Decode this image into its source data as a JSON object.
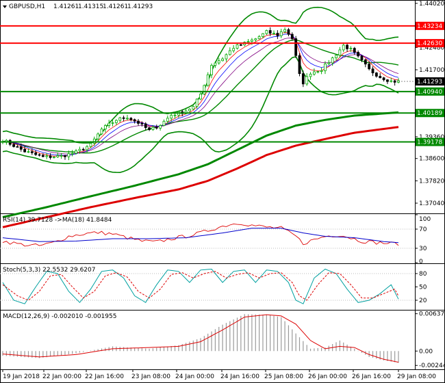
{
  "window": {
    "symbol_title": "GBPUSD,H1",
    "ohlc": [
      "1.41261",
      "1.41315",
      "1.41261",
      "1.41293"
    ],
    "collapse_icon": "triangle-down-icon"
  },
  "colors": {
    "bull_candle": "#00aa00",
    "bear_candle": "#000000",
    "bollinger": "#008800",
    "ma_fast": "#ff0000",
    "ma_mid": "#0000ff",
    "ma_slow": "#800080",
    "ma200_green": "#008800",
    "ma_red": "#dd0000",
    "rsi": "#dd0000",
    "rsi_ma": "#0000cc",
    "stoch_main": "#00a0a0",
    "stoch_signal": "#dd0000",
    "macd_hist": "#999999",
    "macd_signal": "#dd0000",
    "level_red": "#ff0000",
    "level_green": "#008800",
    "current_price_bg": "#000000"
  },
  "chart_data": [
    {
      "type": "candlestick",
      "name": "GBPUSD,H1",
      "y_axis_ticks": [
        "1.44020",
        "1.42480",
        "1.41700",
        "1.39360",
        "1.38600",
        "1.37820",
        "1.37040"
      ],
      "ylim": [
        1.3673,
        1.4409
      ],
      "x_axis_ticks": [
        "19 Jan 2018",
        "22 Jan 00:00",
        "22 Jan 16:00",
        "23 Jan 08:00",
        "24 Jan 00:00",
        "24 Jan 16:00",
        "25 Jan 08:00",
        "26 Jan 00:00",
        "26 Jan 16:00",
        "29 Jan 08:00"
      ],
      "horizontal_levels": [
        {
          "value": 1.43234,
          "label": "1.43234",
          "color": "red"
        },
        {
          "value": 1.4263,
          "label": "1.42630",
          "color": "red"
        },
        {
          "value": 1.4094,
          "label": "1.40940",
          "color": "green"
        },
        {
          "value": 1.40189,
          "label": "1.40189",
          "color": "green"
        },
        {
          "value": 1.39178,
          "label": "1.39178",
          "color": "green"
        }
      ],
      "current_price": {
        "value": 1.41293,
        "label": "1.41293"
      },
      "anchors": [
        [
          0,
          1.3925
        ],
        [
          6,
          1.3885
        ],
        [
          11,
          1.3865
        ],
        [
          16,
          1.3868
        ],
        [
          20,
          1.3882
        ],
        [
          24,
          1.3908
        ],
        [
          27,
          1.3962
        ],
        [
          31,
          1.3995
        ],
        [
          34,
          1.4005
        ],
        [
          37,
          1.3985
        ],
        [
          40,
          1.3958
        ],
        [
          43,
          1.3978
        ],
        [
          46,
          1.4012
        ],
        [
          49,
          1.4022
        ],
        [
          52,
          1.404
        ],
        [
          54,
          1.4085
        ],
        [
          57,
          1.4188
        ],
        [
          60,
          1.421
        ],
        [
          63,
          1.4248
        ],
        [
          66,
          1.4262
        ],
        [
          69,
          1.4278
        ],
        [
          72,
          1.4302
        ],
        [
          75,
          1.4292
        ],
        [
          77,
          1.4312
        ],
        [
          79,
          1.428
        ],
        [
          81,
          1.4152
        ],
        [
          82,
          1.4125
        ],
        [
          84,
          1.416
        ],
        [
          87,
          1.4172
        ],
        [
          90,
          1.421
        ],
        [
          93,
          1.4255
        ],
        [
          95,
          1.424
        ],
        [
          98,
          1.42
        ],
        [
          100,
          1.417
        ],
        [
          103,
          1.4145
        ],
        [
          106,
          1.413
        ],
        [
          108,
          1.4129
        ]
      ],
      "moving_averages": [
        {
          "color": "green",
          "anchors": [
            [
              0,
              1.3655
            ],
            [
              12,
              1.369
            ],
            [
              24,
              1.3728
            ],
            [
              36,
              1.3765
            ],
            [
              48,
              1.3805
            ],
            [
              56,
              1.384
            ],
            [
              64,
              1.389
            ],
            [
              72,
              1.394
            ],
            [
              80,
              1.3975
            ],
            [
              88,
              1.3995
            ],
            [
              96,
              1.401
            ],
            [
              108,
              1.4021
            ]
          ]
        },
        {
          "color": "red",
          "anchors": [
            [
              0,
              1.362
            ],
            [
              12,
              1.3655
            ],
            [
              24,
              1.369
            ],
            [
              36,
              1.3722
            ],
            [
              48,
              1.3752
            ],
            [
              56,
              1.3782
            ],
            [
              64,
              1.3825
            ],
            [
              72,
              1.3872
            ],
            [
              80,
              1.3905
            ],
            [
              88,
              1.3928
            ],
            [
              96,
              1.395
            ],
            [
              108,
              1.397
            ]
          ]
        }
      ]
    },
    {
      "type": "line",
      "name": "RSI(14)",
      "header": "RSI(14) 39.7128  ->MA(18) 41.8484",
      "y_ticks": [
        "100",
        "70",
        "30",
        "0"
      ],
      "ylim": [
        0,
        100
      ],
      "rsi_anchors": [
        [
          0,
          45
        ],
        [
          5,
          38
        ],
        [
          10,
          35
        ],
        [
          14,
          42
        ],
        [
          18,
          55
        ],
        [
          22,
          60
        ],
        [
          26,
          63
        ],
        [
          30,
          60
        ],
        [
          34,
          52
        ],
        [
          38,
          45
        ],
        [
          42,
          43
        ],
        [
          46,
          50
        ],
        [
          50,
          55
        ],
        [
          54,
          62
        ],
        [
          58,
          72
        ],
        [
          62,
          80
        ],
        [
          65,
          83
        ],
        [
          68,
          78
        ],
        [
          72,
          74
        ],
        [
          76,
          72
        ],
        [
          80,
          55
        ],
        [
          82,
          40
        ],
        [
          85,
          48
        ],
        [
          88,
          55
        ],
        [
          92,
          58
        ],
        [
          95,
          52
        ],
        [
          98,
          45
        ],
        [
          102,
          42
        ],
        [
          106,
          40
        ],
        [
          108,
          39.7
        ]
      ],
      "ma_anchors": [
        [
          0,
          52
        ],
        [
          10,
          44
        ],
        [
          20,
          45
        ],
        [
          30,
          50
        ],
        [
          40,
          50
        ],
        [
          50,
          52
        ],
        [
          60,
          62
        ],
        [
          68,
          72
        ],
        [
          76,
          72
        ],
        [
          82,
          62
        ],
        [
          88,
          55
        ],
        [
          96,
          52
        ],
        [
          104,
          44
        ],
        [
          108,
          41.8
        ]
      ]
    },
    {
      "type": "line",
      "name": "Stoch(5,3,3)",
      "header": "Stoch(5,3,3) 22.5532 29.6207",
      "y_ticks": [
        "80",
        "50",
        "20"
      ],
      "ylim": [
        0,
        100
      ],
      "main_anchors": [
        [
          0,
          60
        ],
        [
          3,
          20
        ],
        [
          6,
          12
        ],
        [
          9,
          50
        ],
        [
          12,
          85
        ],
        [
          15,
          80
        ],
        [
          18,
          40
        ],
        [
          21,
          15
        ],
        [
          24,
          45
        ],
        [
          27,
          85
        ],
        [
          30,
          88
        ],
        [
          33,
          70
        ],
        [
          36,
          30
        ],
        [
          39,
          15
        ],
        [
          42,
          55
        ],
        [
          45,
          88
        ],
        [
          48,
          85
        ],
        [
          51,
          60
        ],
        [
          54,
          88
        ],
        [
          57,
          90
        ],
        [
          60,
          60
        ],
        [
          63,
          85
        ],
        [
          66,
          88
        ],
        [
          69,
          60
        ],
        [
          72,
          88
        ],
        [
          75,
          85
        ],
        [
          78,
          60
        ],
        [
          80,
          20
        ],
        [
          82,
          12
        ],
        [
          85,
          70
        ],
        [
          88,
          90
        ],
        [
          91,
          80
        ],
        [
          94,
          45
        ],
        [
          97,
          15
        ],
        [
          100,
          20
        ],
        [
          103,
          35
        ],
        [
          106,
          55
        ],
        [
          108,
          22.6
        ]
      ],
      "signal_anchors": [
        [
          0,
          55
        ],
        [
          4,
          30
        ],
        [
          7,
          20
        ],
        [
          10,
          40
        ],
        [
          13,
          75
        ],
        [
          16,
          78
        ],
        [
          19,
          50
        ],
        [
          22,
          25
        ],
        [
          25,
          40
        ],
        [
          28,
          75
        ],
        [
          31,
          82
        ],
        [
          34,
          72
        ],
        [
          37,
          40
        ],
        [
          40,
          25
        ],
        [
          43,
          45
        ],
        [
          46,
          78
        ],
        [
          49,
          82
        ],
        [
          52,
          70
        ],
        [
          55,
          80
        ],
        [
          58,
          85
        ],
        [
          61,
          70
        ],
        [
          64,
          78
        ],
        [
          67,
          82
        ],
        [
          70,
          70
        ],
        [
          73,
          80
        ],
        [
          76,
          82
        ],
        [
          79,
          60
        ],
        [
          81,
          30
        ],
        [
          83,
          20
        ],
        [
          86,
          55
        ],
        [
          89,
          82
        ],
        [
          92,
          80
        ],
        [
          95,
          55
        ],
        [
          98,
          25
        ],
        [
          101,
          25
        ],
        [
          104,
          35
        ],
        [
          107,
          45
        ],
        [
          108,
          29.6
        ]
      ]
    },
    {
      "type": "bar+line",
      "name": "MACD(12,26,9)",
      "header": "MACD(12,26,9) -0.002010 -0.001955",
      "y_ticks": [
        "0.00637",
        "0.00",
        "-0.002448"
      ],
      "ylim": [
        -0.003,
        0.0068
      ],
      "hist_anchors": [
        [
          0,
          -0.0008
        ],
        [
          10,
          -0.0012
        ],
        [
          20,
          -0.0004
        ],
        [
          30,
          0.0008
        ],
        [
          40,
          0.0004
        ],
        [
          48,
          0.001
        ],
        [
          54,
          0.0022
        ],
        [
          60,
          0.0045
        ],
        [
          66,
          0.0063
        ],
        [
          72,
          0.0062
        ],
        [
          76,
          0.0058
        ],
        [
          80,
          0.003
        ],
        [
          84,
          0.0004
        ],
        [
          88,
          0.0006
        ],
        [
          92,
          0.0018
        ],
        [
          96,
          0.0004
        ],
        [
          100,
          -0.001
        ],
        [
          104,
          -0.0016
        ],
        [
          108,
          -0.002
        ]
      ],
      "signal_anchors": [
        [
          0,
          -0.0005
        ],
        [
          10,
          -0.001
        ],
        [
          20,
          -0.0006
        ],
        [
          30,
          0.0004
        ],
        [
          40,
          0.0006
        ],
        [
          48,
          0.0008
        ],
        [
          54,
          0.0016
        ],
        [
          60,
          0.0036
        ],
        [
          66,
          0.0058
        ],
        [
          72,
          0.0062
        ],
        [
          76,
          0.006
        ],
        [
          80,
          0.0046
        ],
        [
          84,
          0.0018
        ],
        [
          88,
          0.0004
        ],
        [
          92,
          0.0008
        ],
        [
          96,
          0.0006
        ],
        [
          100,
          -0.0006
        ],
        [
          104,
          -0.0014
        ],
        [
          108,
          -0.0019
        ]
      ]
    }
  ]
}
